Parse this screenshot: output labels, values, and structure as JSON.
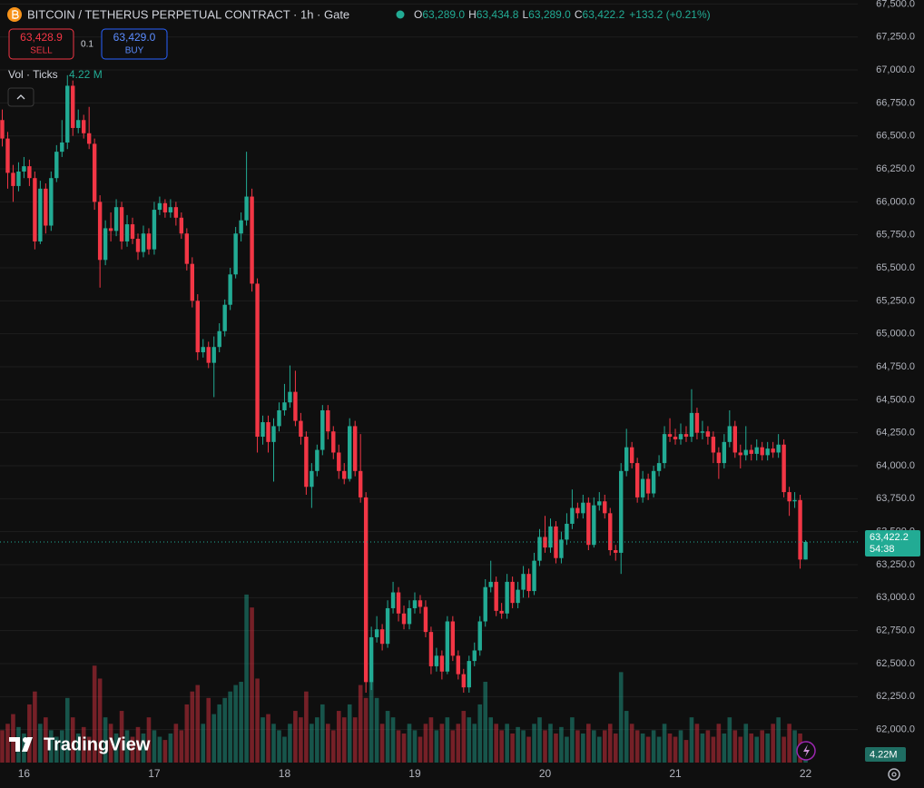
{
  "chart_data": {
    "type": "candlestick",
    "title": "BITCOIN / TETHERUS PERPETUAL CONTRACT · 1h · Gate",
    "categories": [
      null,
      null,
      null,
      null,
      "16",
      null,
      null,
      null,
      null,
      null,
      null,
      null,
      null,
      null,
      null,
      null,
      null,
      null,
      null,
      null,
      null,
      null,
      null,
      null,
      null,
      null,
      null,
      null,
      "17",
      null,
      null,
      null,
      null,
      null,
      null,
      null,
      null,
      null,
      null,
      null,
      null,
      null,
      null,
      null,
      null,
      null,
      null,
      null,
      null,
      null,
      null,
      null,
      "18",
      null,
      null,
      null,
      null,
      null,
      null,
      null,
      null,
      null,
      null,
      null,
      null,
      null,
      null,
      null,
      null,
      null,
      null,
      null,
      null,
      null,
      null,
      null,
      "19",
      null,
      null,
      null,
      null,
      null,
      null,
      null,
      null,
      null,
      null,
      null,
      null,
      null,
      null,
      null,
      null,
      null,
      null,
      null,
      null,
      null,
      null,
      null,
      "20",
      null,
      null,
      null,
      null,
      null,
      null,
      null,
      null,
      null,
      null,
      null,
      null,
      null,
      null,
      null,
      null,
      null,
      null,
      null,
      null,
      null,
      null,
      null,
      "21",
      null,
      null,
      null,
      null,
      null,
      null,
      null,
      null,
      null,
      null,
      null,
      null,
      null,
      null,
      null,
      null,
      null,
      null,
      null,
      null,
      null,
      null,
      null,
      "22"
    ],
    "open": [
      66620,
      66480,
      66220,
      66120,
      66230,
      66270,
      66180,
      65700,
      66100,
      65820,
      66180,
      66380,
      66450,
      66880,
      66560,
      66620,
      66520,
      66440,
      66000,
      65560,
      65800,
      65780,
      65960,
      65700,
      65830,
      65720,
      65620,
      65760,
      65640,
      65940,
      65990,
      65920,
      65960,
      65880,
      65760,
      65530,
      65250,
      64860,
      64900,
      64780,
      64900,
      65020,
      65220,
      65450,
      65760,
      65860,
      66040,
      65380,
      64220,
      64330,
      64180,
      64300,
      64420,
      64480,
      64560,
      64340,
      64220,
      63840,
      63960,
      64120,
      64420,
      64260,
      64100,
      63960,
      63900,
      64300,
      63960,
      63760,
      62360,
      62700,
      62760,
      62650,
      62920,
      63040,
      62880,
      62800,
      62920,
      62980,
      62930,
      62740,
      62480,
      62560,
      62440,
      62820,
      62560,
      62420,
      62320,
      62520,
      62600,
      62820,
      63080,
      63120,
      62900,
      62880,
      63120,
      62960,
      63060,
      63180,
      63050,
      63280,
      63460,
      63380,
      63540,
      63300,
      63440,
      63560,
      63680,
      63640,
      63720,
      63400,
      63700,
      63730,
      63640,
      63360,
      63340,
      63960,
      64140,
      64020,
      63760,
      63900,
      63790,
      63960,
      64020,
      64240,
      64220,
      64200,
      64240,
      64220,
      64400,
      64250,
      64260,
      64220,
      64100,
      64020,
      64180,
      64300,
      64100,
      64080,
      64120,
      64090,
      64140,
      64080,
      64130,
      64100,
      64160,
      63800,
      63730,
      63740,
      63289
    ],
    "high": [
      66700,
      66530,
      66280,
      66300,
      66340,
      66320,
      66230,
      66160,
      66140,
      66230,
      66430,
      66620,
      66960,
      66920,
      66700,
      66660,
      66720,
      66480,
      66050,
      65860,
      65920,
      66020,
      66000,
      65900,
      65880,
      65760,
      65820,
      65800,
      66000,
      66040,
      66020,
      66020,
      66000,
      65920,
      65800,
      65580,
      65300,
      64960,
      64940,
      64980,
      65080,
      65260,
      65500,
      65810,
      65920,
      66380,
      66100,
      65420,
      64380,
      64380,
      64360,
      64480,
      64620,
      64760,
      64720,
      64400,
      64260,
      64020,
      64160,
      64460,
      64460,
      64300,
      64160,
      64020,
      64360,
      64340,
      64240,
      63800,
      62780,
      62860,
      62800,
      62980,
      63120,
      63080,
      62940,
      62980,
      63040,
      63020,
      62980,
      62780,
      62620,
      62600,
      62860,
      62860,
      62600,
      62460,
      62560,
      62660,
      62860,
      63140,
      63280,
      63160,
      62960,
      63180,
      63160,
      63120,
      63240,
      63220,
      63340,
      63520,
      63620,
      63600,
      63580,
      63500,
      63640,
      63820,
      63720,
      63780,
      63760,
      63760,
      63800,
      63780,
      63680,
      63400,
      64020,
      64280,
      64180,
      64060,
      63960,
      63940,
      64000,
      64080,
      64300,
      64360,
      64280,
      64320,
      64300,
      64580,
      64440,
      64340,
      64300,
      64260,
      64140,
      64240,
      64420,
      64340,
      64160,
      64300,
      64160,
      64200,
      64180,
      64180,
      64180,
      64240,
      64200,
      63840,
      63800,
      63780,
      63434.8
    ],
    "low": [
      66420,
      66100,
      66000,
      66080,
      66180,
      66120,
      65640,
      65680,
      65760,
      65780,
      66150,
      66340,
      66400,
      66500,
      66520,
      66480,
      66400,
      65940,
      65350,
      65520,
      65700,
      65740,
      65640,
      65660,
      65680,
      65560,
      65580,
      65600,
      65600,
      65900,
      65880,
      65880,
      65820,
      65720,
      65480,
      65200,
      64800,
      64820,
      64740,
      64520,
      64860,
      64980,
      65180,
      65420,
      65700,
      65820,
      65320,
      64100,
      64160,
      64100,
      63880,
      64260,
      64380,
      64440,
      64300,
      64160,
      63780,
      63680,
      63920,
      64080,
      64200,
      64050,
      63900,
      63860,
      63880,
      63920,
      63720,
      62280,
      62300,
      62660,
      62600,
      62620,
      62880,
      62820,
      62760,
      62760,
      62880,
      62880,
      62700,
      62420,
      62440,
      62380,
      62420,
      62520,
      62380,
      62280,
      62280,
      62480,
      62560,
      62780,
      63040,
      62860,
      62840,
      62840,
      62920,
      62920,
      63000,
      63000,
      63020,
      63240,
      63340,
      63340,
      63260,
      63260,
      63400,
      63520,
      63600,
      63600,
      63360,
      63380,
      63660,
      63600,
      63320,
      63280,
      63180,
      63920,
      63980,
      63720,
      63720,
      63740,
      63760,
      63920,
      63980,
      64180,
      64160,
      64160,
      64180,
      64180,
      64200,
      64200,
      64160,
      64020,
      63900,
      63980,
      64140,
      64060,
      63980,
      64040,
      64040,
      64040,
      64040,
      64040,
      64060,
      64060,
      63760,
      63620,
      63680,
      63220,
      63289
    ],
    "close": [
      66480,
      66220,
      66120,
      66230,
      66270,
      66180,
      65700,
      66100,
      65820,
      66180,
      66380,
      66450,
      66880,
      66560,
      66620,
      66520,
      66440,
      66000,
      65560,
      65800,
      65780,
      65960,
      65700,
      65830,
      65720,
      65620,
      65760,
      65640,
      65940,
      65990,
      65920,
      65960,
      65880,
      65760,
      65530,
      65250,
      64860,
      64900,
      64780,
      64900,
      65020,
      65220,
      65450,
      65760,
      65860,
      66040,
      65380,
      64220,
      64330,
      64180,
      64300,
      64420,
      64480,
      64560,
      64340,
      64220,
      63840,
      63960,
      64120,
      64420,
      64260,
      64100,
      63960,
      63900,
      64300,
      63960,
      63760,
      62360,
      62700,
      62760,
      62650,
      62920,
      63040,
      62880,
      62800,
      62920,
      62980,
      62930,
      62740,
      62480,
      62560,
      62440,
      62820,
      62560,
      62420,
      62320,
      62520,
      62600,
      62820,
      63080,
      63120,
      62900,
      62880,
      63120,
      62960,
      63060,
      63180,
      63050,
      63280,
      63460,
      63380,
      63540,
      63300,
      63440,
      63560,
      63680,
      63640,
      63720,
      63400,
      63700,
      63730,
      63640,
      63360,
      63340,
      63960,
      64140,
      64020,
      63760,
      63900,
      63790,
      63960,
      64020,
      64240,
      64220,
      64200,
      64240,
      64220,
      64400,
      64250,
      64260,
      64220,
      64100,
      64020,
      64180,
      64300,
      64100,
      64080,
      64120,
      64090,
      64140,
      64080,
      64130,
      64100,
      64160,
      63800,
      63730,
      63740,
      63289,
      63422.2
    ],
    "volume": [
      10,
      12,
      15,
      11,
      9,
      18,
      22,
      12,
      14,
      10,
      8,
      10,
      20,
      14,
      9,
      11,
      8,
      30,
      26,
      14,
      12,
      9,
      16,
      10,
      8,
      11,
      9,
      14,
      10,
      8,
      7,
      9,
      12,
      10,
      18,
      22,
      24,
      12,
      20,
      15,
      18,
      20,
      22,
      24,
      25,
      52,
      48,
      26,
      14,
      15,
      12,
      10,
      8,
      12,
      16,
      14,
      22,
      12,
      14,
      18,
      12,
      10,
      16,
      14,
      18,
      14,
      24,
      20,
      25,
      20,
      12,
      16,
      14,
      10,
      9,
      12,
      10,
      8,
      12,
      14,
      10,
      12,
      14,
      10,
      12,
      16,
      14,
      12,
      18,
      25,
      14,
      12,
      10,
      12,
      9,
      11,
      10,
      8,
      12,
      14,
      10,
      12,
      9,
      11,
      8,
      14,
      10,
      9,
      12,
      10,
      8,
      10,
      12,
      9,
      28,
      16,
      12,
      10,
      9,
      8,
      10,
      8,
      12,
      9,
      8,
      10,
      7,
      14,
      12,
      9,
      10,
      8,
      12,
      9,
      14,
      10,
      8,
      12,
      9,
      8,
      10,
      9,
      12,
      14,
      8,
      12,
      10,
      9,
      4.22
    ],
    "up_color": "#22ab94",
    "down_color": "#f23645",
    "ylim": [
      61750,
      67530
    ],
    "vlim": [
      0,
      236
    ],
    "grid": true,
    "yticks": [
      {
        "value": 62000,
        "label": "62,000.0"
      },
      {
        "value": 62250,
        "label": "62,250.0"
      },
      {
        "value": 62500,
        "label": "62,500.0"
      },
      {
        "value": 62750,
        "label": "62,750.0"
      },
      {
        "value": 63000,
        "label": "63,000.0"
      },
      {
        "value": 63250,
        "label": "63,250.0"
      },
      {
        "value": 63500,
        "label": "63,500.0"
      },
      {
        "value": 63750,
        "label": "63,750.0"
      },
      {
        "value": 64000,
        "label": "64,000.0"
      },
      {
        "value": 64250,
        "label": "64,250.0"
      },
      {
        "value": 64500,
        "label": "64,500.0"
      },
      {
        "value": 64750,
        "label": "64,750.0"
      },
      {
        "value": 65000,
        "label": "65,000.0"
      },
      {
        "value": 65250,
        "label": "65,250.0"
      },
      {
        "value": 65500,
        "label": "65,500.0"
      },
      {
        "value": 65750,
        "label": "65,750.0"
      },
      {
        "value": 66000,
        "label": "66,000.0"
      },
      {
        "value": 66250,
        "label": "66,250.0"
      },
      {
        "value": 66500,
        "label": "66,500.0"
      },
      {
        "value": 66750,
        "label": "66,750.0"
      },
      {
        "value": 67000,
        "label": "67,000.0"
      },
      {
        "value": 67250,
        "label": "67,250.0"
      },
      {
        "value": 67500,
        "label": "67,500.0"
      }
    ],
    "legend": [
      {
        "key": "O",
        "label": "63,289.0"
      },
      {
        "key": "H",
        "label": "63,434.8"
      },
      {
        "key": "L",
        "label": "63,289.0"
      },
      {
        "key": "C",
        "label": "63,422.2"
      }
    ],
    "change": "+133.2 (+0.21%)",
    "last_price": {
      "value": 63422.2,
      "label": "63,422.2"
    },
    "countdown": "54:38",
    "volume_legend": {
      "name": "Vol · Ticks",
      "label": "4.22 M"
    },
    "volume_badge": "4.22M"
  },
  "trade": {
    "sell": {
      "price": "63,428.9",
      "label": "SELL"
    },
    "qty": "0.1",
    "buy": {
      "price": "63,429.0",
      "label": "BUY"
    }
  },
  "branding": "TradingView"
}
